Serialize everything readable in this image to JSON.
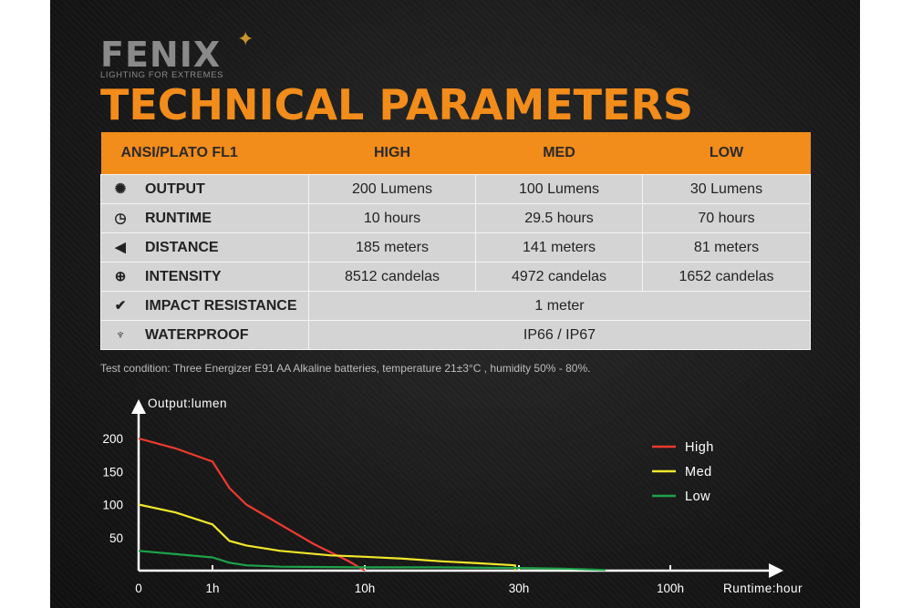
{
  "brand": {
    "name": "FENIX",
    "tagline": "LIGHTING FOR EXTREMES"
  },
  "title": "TECHNICAL PARAMETERS",
  "table": {
    "headers": [
      "ANSI/PLATO FL1",
      "HIGH",
      "MED",
      "LOW"
    ],
    "rows": [
      {
        "icon": "output-icon",
        "glyph": "✺",
        "label": "OUTPUT",
        "values": [
          "200 Lumens",
          "100 Lumens",
          "30 Lumens"
        ]
      },
      {
        "icon": "runtime-icon",
        "glyph": "◷",
        "label": "RUNTIME",
        "values": [
          "10 hours",
          "29.5 hours",
          "70 hours"
        ]
      },
      {
        "icon": "distance-icon",
        "glyph": "◀",
        "label": "DISTANCE",
        "values": [
          "185 meters",
          "141 meters",
          "81 meters"
        ]
      },
      {
        "icon": "intensity-icon",
        "glyph": "⊕",
        "label": "INTENSITY",
        "values": [
          "8512 candelas",
          "4972 candelas",
          "1652 candelas"
        ]
      },
      {
        "icon": "impact-icon",
        "glyph": "✔",
        "label": "IMPACT RESISTANCE",
        "span_value": "1 meter"
      },
      {
        "icon": "waterproof-icon",
        "glyph": "♆",
        "label": "WATERPROOF",
        "span_value": "IP66 / IP67"
      }
    ]
  },
  "note": "Test condition: Three Energizer E91 AA Alkaline batteries, temperature 21±3°C , humidity 50% - 80%.",
  "chart_data": {
    "type": "line",
    "ylabel": "Output:lumen",
    "xlabel": "Runtime:hour",
    "y_ticks": [
      50,
      100,
      150,
      200
    ],
    "x_ticks": [
      {
        "label": "0",
        "hours": 0
      },
      {
        "label": "1h",
        "hours": 1
      },
      {
        "label": "10h",
        "hours": 10
      },
      {
        "label": "30h",
        "hours": 30
      },
      {
        "label": "100h",
        "hours": 100
      }
    ],
    "legend_position": "top-right",
    "series": [
      {
        "name": "High",
        "color": "#f03a2f",
        "points": [
          [
            0,
            200
          ],
          [
            0.5,
            185
          ],
          [
            1,
            165
          ],
          [
            2,
            125
          ],
          [
            3,
            100
          ],
          [
            5,
            70
          ],
          [
            7,
            40
          ],
          [
            9,
            15
          ],
          [
            10,
            0
          ]
        ]
      },
      {
        "name": "Med",
        "color": "#f1e72a",
        "points": [
          [
            0,
            100
          ],
          [
            0.5,
            88
          ],
          [
            1,
            70
          ],
          [
            2,
            45
          ],
          [
            3,
            38
          ],
          [
            5,
            30
          ],
          [
            8,
            23
          ],
          [
            10,
            21
          ],
          [
            15,
            18
          ],
          [
            20,
            14
          ],
          [
            25,
            11
          ],
          [
            29.5,
            8
          ],
          [
            29.5,
            0
          ]
        ]
      },
      {
        "name": "Low",
        "color": "#1fa24a",
        "points": [
          [
            0,
            30
          ],
          [
            0.5,
            25
          ],
          [
            1,
            20
          ],
          [
            2,
            12
          ],
          [
            3,
            8
          ],
          [
            5,
            6
          ],
          [
            10,
            5
          ],
          [
            20,
            5
          ],
          [
            30,
            4
          ],
          [
            50,
            3
          ],
          [
            70,
            1
          ]
        ]
      }
    ]
  },
  "colors": {
    "accent": "#f28c1a",
    "background": "#1a1a1a"
  }
}
